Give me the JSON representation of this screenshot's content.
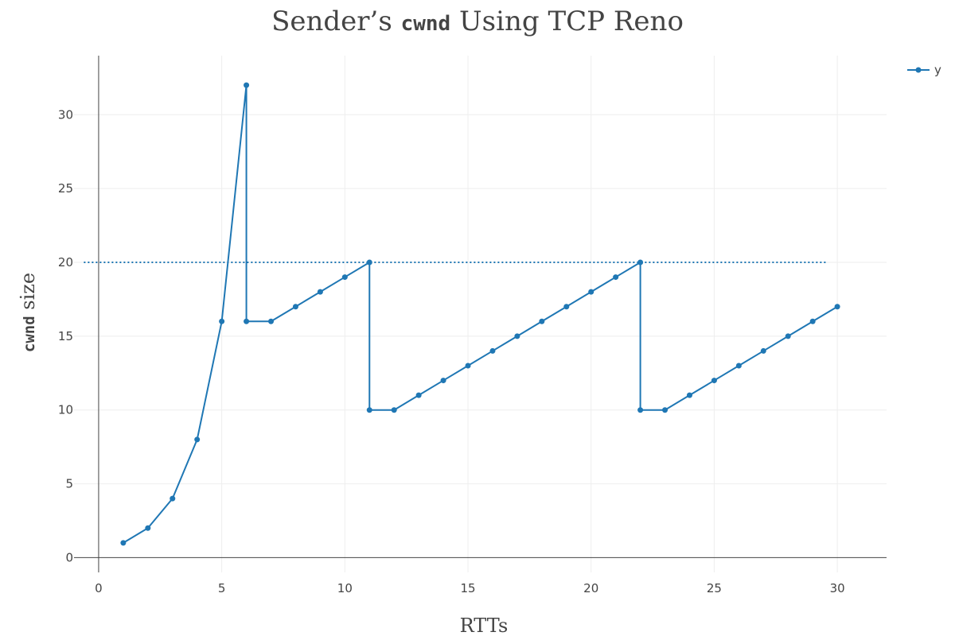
{
  "chart_data": {
    "type": "line",
    "title_parts": [
      "Sender’s ",
      "cwnd",
      " Using TCP Reno"
    ],
    "xlabel": "RTTs",
    "ylabel_parts": [
      "cwnd",
      " size"
    ],
    "xlim": [
      -1,
      32
    ],
    "ylim": [
      -1.0,
      34.0
    ],
    "xticks": [
      0,
      5,
      10,
      15,
      20,
      25,
      30
    ],
    "yticks": [
      0,
      5,
      10,
      15,
      20,
      25,
      30
    ],
    "grid": true,
    "legend_placement": "top-right",
    "series": [
      {
        "name": "y",
        "color": "#1f77b4",
        "mode": "lines+markers",
        "x": [
          1,
          2,
          3,
          4,
          5,
          6,
          6,
          7,
          8,
          9,
          10,
          11,
          11,
          12,
          13,
          14,
          15,
          16,
          17,
          18,
          19,
          20,
          21,
          22,
          22,
          23,
          24,
          25,
          26,
          27,
          28,
          29,
          30
        ],
        "y": [
          1,
          2,
          4,
          8,
          16,
          32,
          16,
          16,
          17,
          18,
          19,
          20,
          10,
          10,
          11,
          12,
          13,
          14,
          15,
          16,
          17,
          18,
          19,
          20,
          10,
          10,
          11,
          12,
          13,
          14,
          15,
          16,
          17
        ]
      }
    ],
    "threshold_line": {
      "y": 20,
      "x_range": [
        -0.6,
        29.6
      ],
      "style": "dotted",
      "color": "#1f77b4"
    }
  }
}
